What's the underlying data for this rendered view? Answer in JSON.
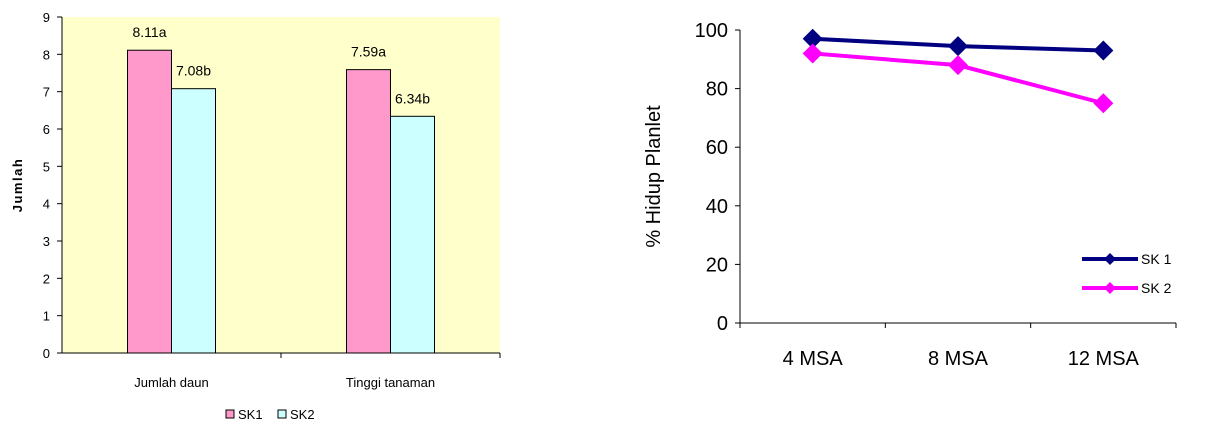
{
  "chart_data": [
    {
      "type": "bar",
      "title": "",
      "xlabel": "",
      "ylabel": "Jumlah",
      "ylim": [
        0,
        9
      ],
      "yticks": [
        0,
        1,
        2,
        3,
        4,
        5,
        6,
        7,
        8,
        9
      ],
      "grid": false,
      "legend_position": "bottom",
      "plot_background": "#FFFFCC",
      "categories": [
        "Jumlah daun",
        "Tinggi tanaman"
      ],
      "series": [
        {
          "name": "SK1",
          "color": "#FF99CC",
          "values": [
            8.11,
            7.59
          ],
          "labels": [
            "8.11a",
            "7.59a"
          ]
        },
        {
          "name": "SK2",
          "color": "#CCFFFF",
          "values": [
            7.08,
            6.34
          ],
          "labels": [
            "7.08b",
            "6.34b"
          ]
        }
      ]
    },
    {
      "type": "line",
      "title": "",
      "xlabel": "",
      "ylabel": "% Hidup Planlet",
      "ylim": [
        0,
        100
      ],
      "yticks": [
        0,
        20,
        40,
        60,
        80,
        100
      ],
      "grid": false,
      "legend_position": "right",
      "categories": [
        "4 MSA",
        "8 MSA",
        "12 MSA"
      ],
      "series": [
        {
          "name": "SK 1",
          "color": "#000080",
          "marker": "diamond",
          "values": [
            97,
            94.5,
            93
          ]
        },
        {
          "name": "SK 2",
          "color": "#FF00FF",
          "marker": "diamond",
          "values": [
            92,
            88,
            75
          ]
        }
      ]
    }
  ]
}
